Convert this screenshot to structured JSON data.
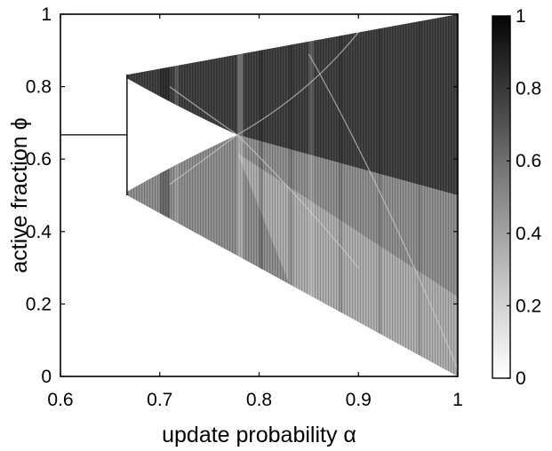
{
  "chart_data": {
    "type": "heatmap",
    "title": "",
    "xlabel": "update probability α",
    "ylabel": "active fraction ϕ",
    "xlim": [
      0.6,
      1
    ],
    "ylim": [
      0,
      1
    ],
    "x_ticks": [
      "0.6",
      "0.7",
      "0.8",
      "0.9",
      "1"
    ],
    "y_ticks": [
      "0",
      "0.2",
      "0.4",
      "0.6",
      "0.8",
      "1"
    ],
    "colorbar": {
      "range": [
        0,
        1
      ],
      "ticks": [
        "0",
        "0.2",
        "0.4",
        "0.6",
        "0.8",
        "1"
      ],
      "colormap": "white-to-black",
      "low_color": "#ffffff",
      "high_color": "#000000"
    },
    "features": {
      "fixed_point": {
        "alpha_range": [
          0.6,
          0.667
        ],
        "phi": 0.667
      },
      "period_two_branches": {
        "alpha_start": 0.667,
        "phi_upper": 0.833,
        "phi_lower": 0.5,
        "merge_alpha": 0.778,
        "merge_phi": 0.667
      },
      "chaotic_band": {
        "alpha_range": [
          0.667,
          1
        ],
        "phi_upper_at_end": 1,
        "phi_lower_at_end": 0
      }
    },
    "grid": false,
    "legend": "none"
  }
}
